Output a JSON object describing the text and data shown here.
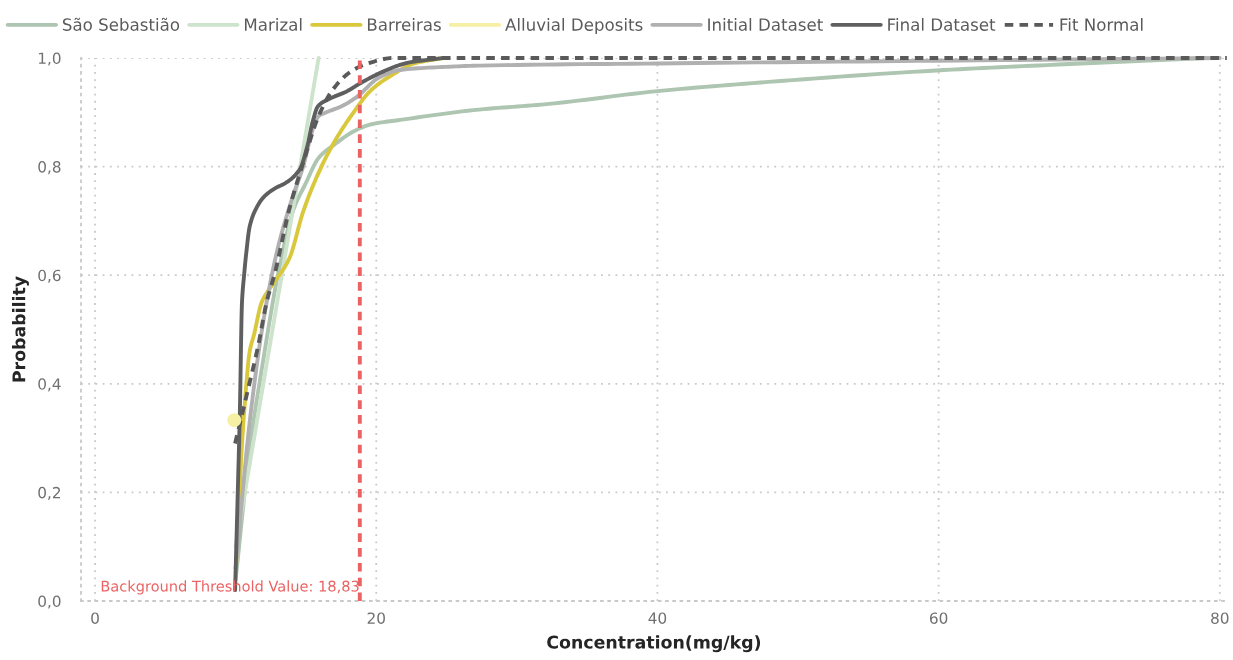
{
  "chart_data": {
    "type": "line",
    "xlabel": "Concentration(mg/kg)",
    "ylabel": "Probability",
    "xlim": [
      -1,
      80.5
    ],
    "ylim": [
      0,
      1
    ],
    "xticks": [
      0,
      20,
      40,
      60,
      80
    ],
    "yticks": [
      {
        "value": 0,
        "label": "0,0"
      },
      {
        "value": 0.2,
        "label": "0,2"
      },
      {
        "value": 0.4,
        "label": "0,4"
      },
      {
        "value": 0.6,
        "label": "0,6"
      },
      {
        "value": 0.8,
        "label": "0,8"
      },
      {
        "value": 1.0,
        "label": "1,0"
      }
    ],
    "grid": true,
    "legend": "top left",
    "ref_lines": [
      {
        "axis": "x",
        "value": 18.83,
        "label": "Background Threshold Value: 18,83",
        "color": "#ea6262",
        "line_style": "dashed"
      }
    ],
    "series": [
      {
        "name": "São Sebastião",
        "color": "#adc5b1",
        "x": [
          10.0,
          11.0,
          12.0,
          13.0,
          14.1,
          15.0,
          15.9,
          17.1,
          18.4,
          19.66,
          21.7,
          27.3,
          32.1,
          40,
          47.9,
          59.8,
          67.7,
          79.0
        ],
        "values": [
          0.04,
          0.28,
          0.45,
          0.6,
          0.72,
          0.77,
          0.816,
          0.842,
          0.865,
          0.878,
          0.886,
          0.905,
          0.915,
          0.939,
          0.956,
          0.977,
          0.987,
          1.0
        ]
      },
      {
        "name": "Marizal",
        "color": "#cde3cb",
        "x": [
          10.0,
          15.9
        ],
        "values": [
          0.1,
          1.0
        ]
      },
      {
        "name": "Barreiras",
        "color": "#d9c83c",
        "x": [
          10.0,
          10.1,
          10.26,
          10.43,
          10.67,
          11.0,
          11.3,
          11.85,
          12.55,
          13.8,
          14.84,
          16.1,
          17.12,
          18.39,
          19.6,
          21.2,
          22.7,
          24.75
        ],
        "values": [
          0.06,
          0.09,
          0.19,
          0.28,
          0.37,
          0.46,
          0.49,
          0.55,
          0.58,
          0.63,
          0.72,
          0.8,
          0.85,
          0.9,
          0.94,
          0.97,
          0.99,
          1.0
        ]
      },
      {
        "name": "Alluvial Deposits",
        "color": "#f6f0a4",
        "marker": "circle",
        "x": [
          9.9
        ],
        "values": [
          0.333
        ]
      },
      {
        "name": "Initial Dataset",
        "color": "#b0b0b0",
        "x": [
          10.0,
          11.0,
          12.0,
          13.0,
          14.0,
          14.8,
          15.5,
          15.9,
          16.36,
          17.6,
          18.6,
          20.2,
          21.7,
          25.2,
          27.3,
          40,
          60,
          80.0
        ],
        "values": [
          0.06,
          0.33,
          0.52,
          0.65,
          0.74,
          0.8,
          0.87,
          0.893,
          0.899,
          0.912,
          0.928,
          0.964,
          0.978,
          0.984,
          0.986,
          0.99,
          0.995,
          1.0
        ]
      },
      {
        "name": "Final Dataset",
        "color": "#5f5f5f",
        "x": [
          9.96,
          10.15,
          10.3,
          10.45,
          10.6,
          10.75,
          11.0,
          11.5,
          12.0,
          12.8,
          13.56,
          14.58,
          15.08,
          15.47,
          15.85,
          16.6,
          17.86,
          18.9,
          20.4,
          22.2,
          24.75
        ],
        "values": [
          0.02,
          0.2,
          0.35,
          0.55,
          0.6,
          0.64,
          0.69,
          0.725,
          0.744,
          0.76,
          0.77,
          0.796,
          0.836,
          0.882,
          0.911,
          0.924,
          0.938,
          0.954,
          0.974,
          0.991,
          1.0
        ]
      },
      {
        "name": "Fit Normal",
        "color": "#5a5a5a",
        "line_style": "dashed",
        "x": [
          9.96,
          10.79,
          11.6,
          12.2,
          12.8,
          13.8,
          14.84,
          15.85,
          16.86,
          18.14,
          19.4,
          21.2,
          80.5
        ],
        "values": [
          0.29,
          0.38,
          0.47,
          0.55,
          0.605,
          0.72,
          0.81,
          0.89,
          0.94,
          0.974,
          0.99,
          1.0,
          1.0
        ]
      }
    ]
  }
}
